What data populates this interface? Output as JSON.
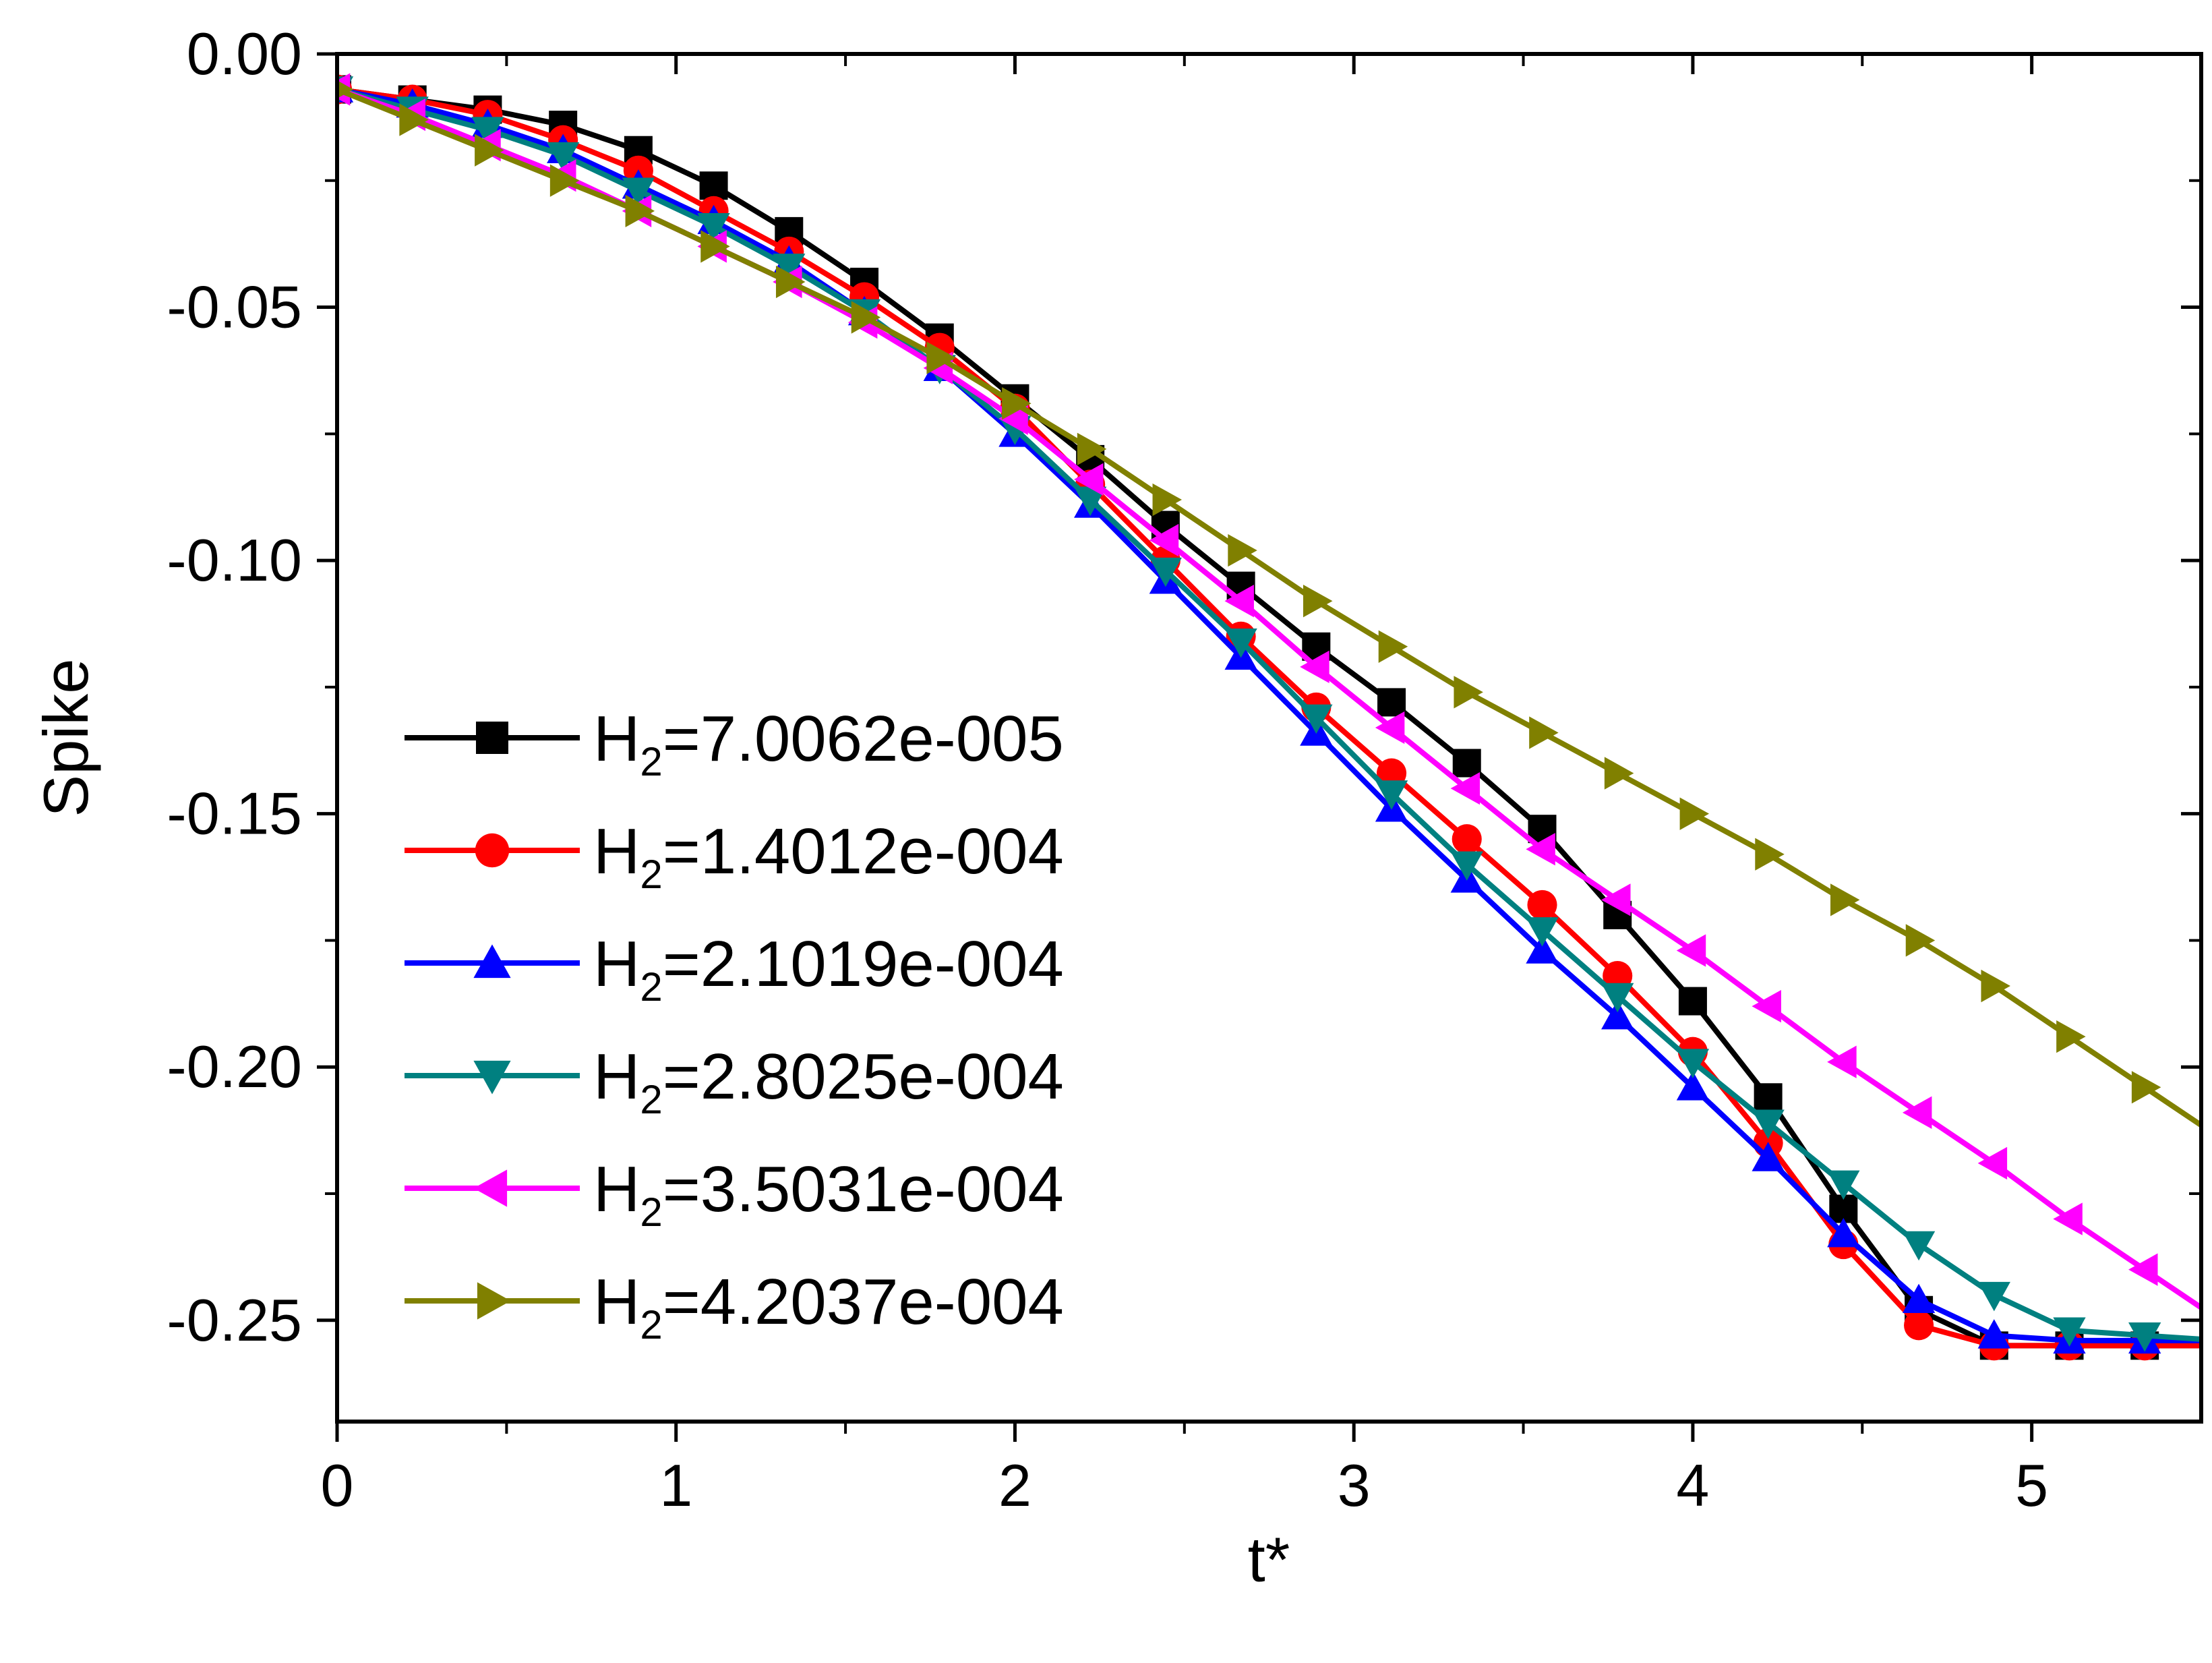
{
  "chart_data": {
    "type": "line",
    "title": "",
    "xlabel": "t*",
    "ylabel": "Spike",
    "xlim": [
      0,
      5.5
    ],
    "ylim": [
      -0.27,
      0.0
    ],
    "xticks": [
      0,
      1,
      2,
      3,
      4,
      5
    ],
    "xtick_labels": [
      "0",
      "1",
      "2",
      "3",
      "4",
      "5"
    ],
    "yticks": [
      0.0,
      -0.05,
      -0.1,
      -0.15,
      -0.2,
      -0.25
    ],
    "ytick_labels": [
      "0.00",
      "-0.05",
      "-0.10",
      "-0.15",
      "-0.20",
      "-0.25"
    ],
    "legend_position": "lower-left",
    "grid": false,
    "x": [
      0,
      0.2222,
      0.4444,
      0.6667,
      0.8889,
      1.1111,
      1.3333,
      1.5556,
      1.7778,
      2.0,
      2.2222,
      2.4444,
      2.6667,
      2.8889,
      3.1111,
      3.3333,
      3.5556,
      3.7778,
      4.0,
      4.2222,
      4.4444,
      4.6667,
      4.8889,
      5.1111,
      5.3333
    ],
    "series": [
      {
        "name": "H2=7.0062e-005",
        "legend_main": "H",
        "legend_sub": "2",
        "legend_rest": "=7.0062e-005",
        "color": "#000000",
        "marker": "square",
        "values": [
          -0.007,
          -0.009,
          -0.011,
          -0.014,
          -0.019,
          -0.026,
          -0.035,
          -0.045,
          -0.056,
          -0.068,
          -0.08,
          -0.093,
          -0.105,
          -0.117,
          -0.128,
          -0.14,
          -0.153,
          -0.17,
          -0.187,
          -0.206,
          -0.228,
          -0.248,
          -0.255,
          -0.255,
          -0.255
        ]
      },
      {
        "name": "H2=1.4012e-004",
        "legend_main": "H",
        "legend_sub": "2",
        "legend_rest": "=1.4012e-004",
        "color": "#ff0000",
        "marker": "circle",
        "values": [
          -0.007,
          -0.009,
          -0.012,
          -0.017,
          -0.023,
          -0.031,
          -0.039,
          -0.048,
          -0.058,
          -0.07,
          -0.085,
          -0.1,
          -0.115,
          -0.129,
          -0.142,
          -0.155,
          -0.168,
          -0.182,
          -0.197,
          -0.215,
          -0.235,
          -0.251,
          -0.255,
          -0.255,
          -0.255
        ]
      },
      {
        "name": "H2=2.1019e-004",
        "legend_main": "H",
        "legend_sub": "2",
        "legend_rest": "=2.1019e-004",
        "color": "#0000ff",
        "marker": "triangle-up",
        "values": [
          -0.007,
          -0.01,
          -0.014,
          -0.019,
          -0.026,
          -0.033,
          -0.041,
          -0.051,
          -0.062,
          -0.075,
          -0.089,
          -0.104,
          -0.119,
          -0.134,
          -0.149,
          -0.163,
          -0.177,
          -0.19,
          -0.204,
          -0.218,
          -0.233,
          -0.246,
          -0.253,
          -0.254,
          -0.254
        ]
      },
      {
        "name": "H2=2.8025e-004",
        "legend_main": "H",
        "legend_sub": "2",
        "legend_rest": "=2.8025e-004",
        "color": "#008080",
        "marker": "triangle-down",
        "values": [
          -0.007,
          -0.011,
          -0.015,
          -0.02,
          -0.027,
          -0.034,
          -0.042,
          -0.051,
          -0.062,
          -0.074,
          -0.088,
          -0.102,
          -0.116,
          -0.131,
          -0.146,
          -0.16,
          -0.173,
          -0.186,
          -0.199,
          -0.211,
          -0.223,
          -0.235,
          -0.245,
          -0.252,
          -0.253
        ]
      },
      {
        "name": "H2=3.5031e-004",
        "legend_main": "H",
        "legend_sub": "2",
        "legend_rest": "=3.5031e-004",
        "color": "#ff00ff",
        "marker": "triangle-left",
        "values": [
          -0.007,
          -0.012,
          -0.018,
          -0.024,
          -0.031,
          -0.038,
          -0.045,
          -0.053,
          -0.062,
          -0.072,
          -0.084,
          -0.096,
          -0.108,
          -0.121,
          -0.133,
          -0.145,
          -0.157,
          -0.167,
          -0.177,
          -0.188,
          -0.199,
          -0.209,
          -0.219,
          -0.23,
          -0.24
        ]
      },
      {
        "name": "H2=4.2037e-004",
        "legend_main": "H",
        "legend_sub": "2",
        "legend_rest": "=4.2037e-004",
        "color": "#808000",
        "marker": "triangle-right",
        "values": [
          -0.007,
          -0.013,
          -0.019,
          -0.025,
          -0.031,
          -0.038,
          -0.045,
          -0.052,
          -0.06,
          -0.069,
          -0.078,
          -0.088,
          -0.098,
          -0.108,
          -0.117,
          -0.126,
          -0.134,
          -0.142,
          -0.15,
          -0.158,
          -0.167,
          -0.175,
          -0.184,
          -0.194,
          -0.204
        ]
      }
    ]
  }
}
